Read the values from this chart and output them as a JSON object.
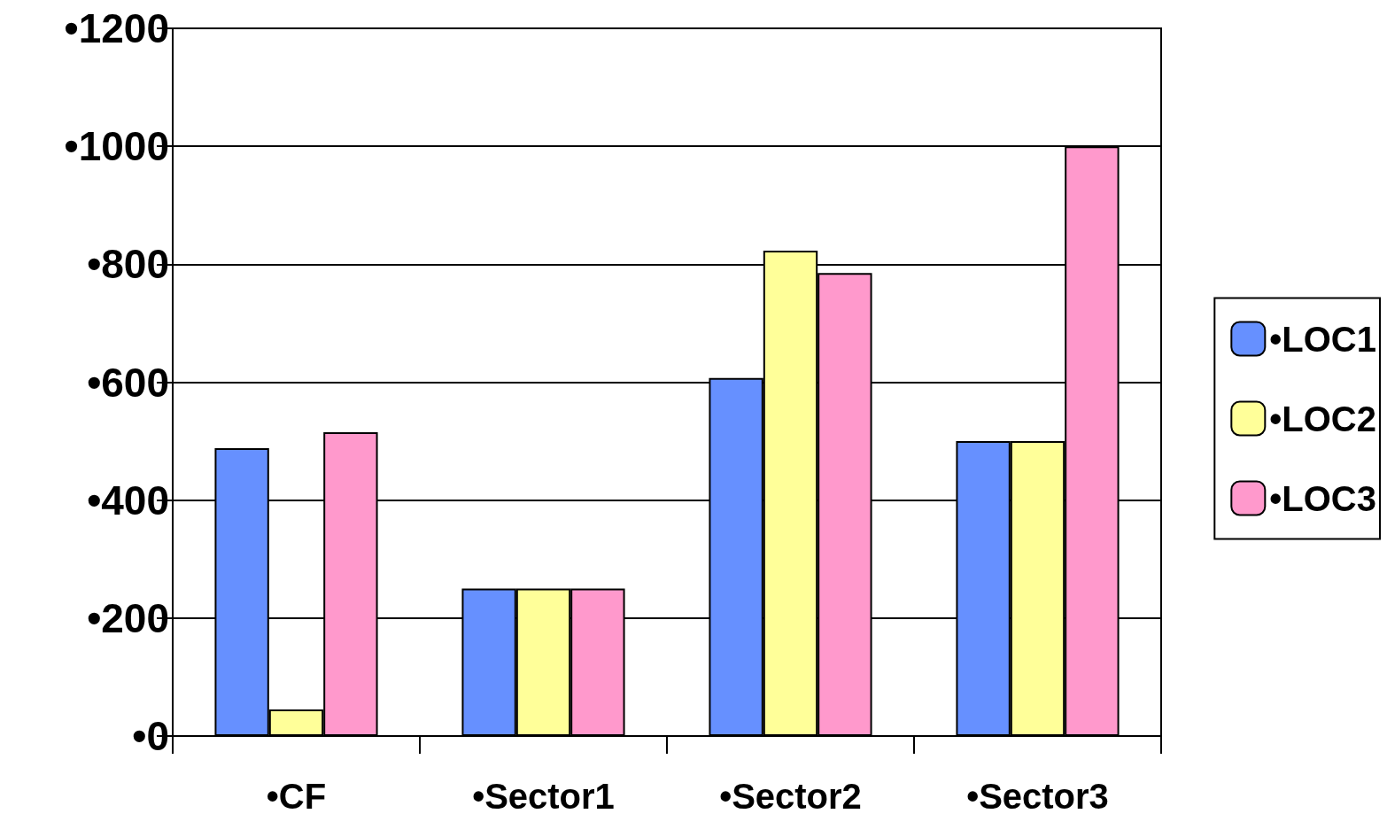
{
  "chart_data": {
    "type": "bar",
    "categories": [
      "•CF",
      "•Sector1",
      "•Sector2",
      "•Sector3"
    ],
    "series": [
      {
        "name": "•LOC1",
        "color": "#6690ff",
        "values": [
          488,
          250,
          607,
          500
        ]
      },
      {
        "name": "•LOC2",
        "color": "#ffff99",
        "values": [
          45,
          250,
          823,
          500
        ]
      },
      {
        "name": "•LOC3",
        "color": "#ff99cc",
        "values": [
          515,
          250,
          785,
          1000
        ]
      }
    ],
    "ylim": [
      0,
      1200
    ],
    "yticks": [
      {
        "value": 0,
        "label": "•0"
      },
      {
        "value": 200,
        "label": "•200"
      },
      {
        "value": 400,
        "label": "•400"
      },
      {
        "value": 600,
        "label": "•600"
      },
      {
        "value": 800,
        "label": "•800"
      },
      {
        "value": 1000,
        "label": "•1000"
      },
      {
        "value": 1200,
        "label": "•1200"
      }
    ],
    "grid": "y",
    "legend": "right"
  }
}
